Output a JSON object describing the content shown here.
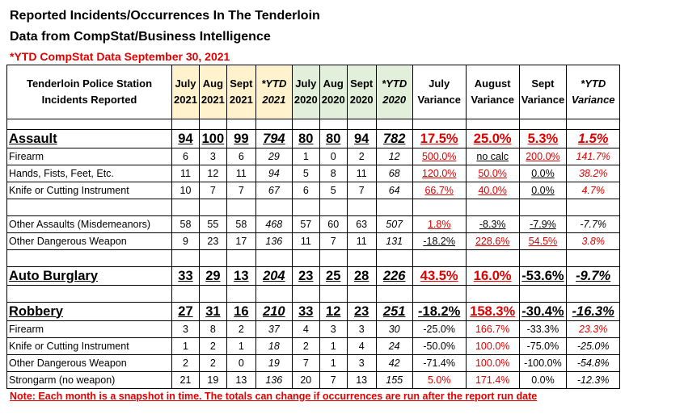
{
  "title_line1": "Reported Incidents/Occurrences In The Tenderloin",
  "title_line2": "Data from CompStat/Business Intelligence",
  "ytd_note": "*YTD CompStat Data September 30, 2021",
  "footer_note": "Note: Each month is a snapshot in time. The totals can change if occurrences are run after the report run date",
  "header": {
    "station": "Tenderloin Police Station",
    "incidents": "Incidents Reported",
    "july": "July",
    "aug": "Aug",
    "sept": "Sept",
    "ytd": "*YTD",
    "y2021": "2021",
    "y2020": "2020",
    "july_var": "July",
    "august_var": "August",
    "sept_var": "Sept",
    "ytd_var": "*YTD",
    "variance": "Variance"
  },
  "colors": {
    "red": "#e00000",
    "yellow": "#fff2cc",
    "green": "#e2efda"
  },
  "rows": [
    {
      "label": "Assault",
      "cells": [
        "94",
        "100",
        "99",
        "794",
        "80",
        "80",
        "94",
        "782"
      ],
      "var": [
        "17.5%",
        "25.0%",
        "5.3%",
        "1.5%"
      ]
    },
    {
      "label": "Firearm",
      "cells": [
        "6",
        "3",
        "6",
        "29",
        "1",
        "0",
        "2",
        "12"
      ],
      "var": [
        "500.0%",
        "no calc",
        "200.0%",
        "141.7%"
      ]
    },
    {
      "label": "Hands, Fists, Feet, Etc.",
      "cells": [
        "11",
        "12",
        "11",
        "94",
        "5",
        "8",
        "11",
        "68"
      ],
      "var": [
        "120.0%",
        "50.0%",
        "0.0%",
        "38.2%"
      ]
    },
    {
      "label": "Knife or Cutting Instrument",
      "cells": [
        "10",
        "7",
        "7",
        "67",
        "6",
        "5",
        "7",
        "64"
      ],
      "var": [
        "66.7%",
        "40.0%",
        "0.0%",
        "4.7%"
      ]
    },
    {
      "label": "Other Assaults (Misdemeanors)",
      "cells": [
        "58",
        "55",
        "58",
        "468",
        "57",
        "60",
        "63",
        "507"
      ],
      "var": [
        "1.8%",
        "-8.3%",
        "-7.9%",
        "-7.7%"
      ]
    },
    {
      "label": "Other Dangerous Weapon",
      "cells": [
        "9",
        "23",
        "17",
        "136",
        "11",
        "7",
        "11",
        "131"
      ],
      "var": [
        "-18.2%",
        "228.6%",
        "54.5%",
        "3.8%"
      ]
    },
    {
      "label": "Auto Burglary",
      "cells": [
        "33",
        "29",
        "13",
        "204",
        "23",
        "25",
        "28",
        "226"
      ],
      "var": [
        "43.5%",
        "16.0%",
        "-53.6%",
        "-9.7%"
      ]
    },
    {
      "label": "Robbery",
      "cells": [
        "27",
        "31",
        "16",
        "210",
        "33",
        "12",
        "23",
        "251"
      ],
      "var": [
        "-18.2%",
        "158.3%",
        "-30.4%",
        "-16.3%"
      ]
    },
    {
      "label": "Firearm",
      "cells": [
        "3",
        "8",
        "2",
        "37",
        "4",
        "3",
        "3",
        "30"
      ],
      "var": [
        "-25.0%",
        "166.7%",
        "-33.3%",
        "23.3%"
      ]
    },
    {
      "label": "Knife or Cutting Instrument",
      "cells": [
        "1",
        "2",
        "1",
        "18",
        "2",
        "1",
        "4",
        "24"
      ],
      "var": [
        "-50.0%",
        "100.0%",
        "-75.0%",
        "-25.0%"
      ]
    },
    {
      "label": "Other Dangerous Weapon",
      "cells": [
        "2",
        "2",
        "0",
        "19",
        "7",
        "1",
        "3",
        "42"
      ],
      "var": [
        "-71.4%",
        "100.0%",
        "-100.0%",
        "-54.8%"
      ]
    },
    {
      "label": "Strongarm (no weapon)",
      "cells": [
        "21",
        "19",
        "13",
        "136",
        "20",
        "7",
        "13",
        "155"
      ],
      "var": [
        "5.0%",
        "171.4%",
        "0.0%",
        "-12.3%"
      ]
    }
  ]
}
